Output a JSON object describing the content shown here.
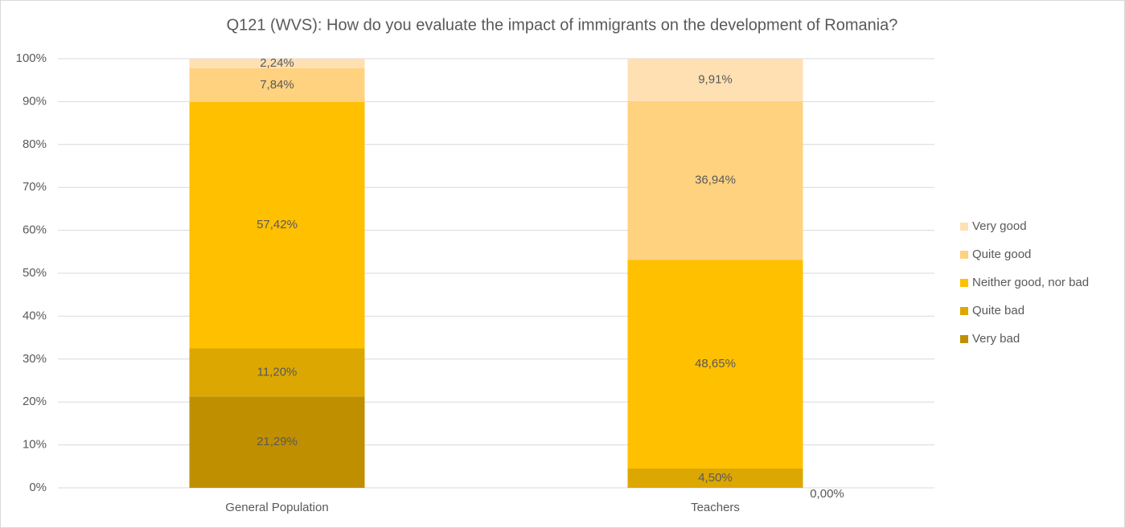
{
  "chart_data": {
    "type": "stacked_bar",
    "title": "Q121 (WVS): How do you evaluate the impact of immigrants on the development of Romania?",
    "categories": [
      "General Population",
      "Teachers"
    ],
    "series": [
      {
        "name": "Very bad",
        "color": "#bf8f00",
        "values": [
          21.29,
          0
        ],
        "value_labels": [
          "21,29%",
          "0,00%"
        ]
      },
      {
        "name": "Quite bad",
        "color": "#dca700",
        "values": [
          11.2,
          4.5
        ],
        "value_labels": [
          "11,20%",
          "4,50%"
        ]
      },
      {
        "name": "Neither good, nor bad",
        "color": "#ffc000",
        "values": [
          57.42,
          48.65
        ],
        "value_labels": [
          "57,42%",
          "48,65%"
        ]
      },
      {
        "name": "Quite good",
        "color": "#ffd280",
        "values": [
          7.84,
          36.94
        ],
        "value_labels": [
          "7,84%",
          "36,94%"
        ]
      },
      {
        "name": "Very good",
        "color": "#ffe0b3",
        "values": [
          2.24,
          9.91
        ],
        "value_labels": [
          "2,24%",
          "9,91%"
        ]
      }
    ],
    "ylim": [
      0,
      100
    ],
    "yticks": [
      {
        "value": 0,
        "label": "0%"
      },
      {
        "value": 10,
        "label": "10%"
      },
      {
        "value": 20,
        "label": "20%"
      },
      {
        "value": 30,
        "label": "30%"
      },
      {
        "value": 40,
        "label": "40%"
      },
      {
        "value": 50,
        "label": "50%"
      },
      {
        "value": 60,
        "label": "60%"
      },
      {
        "value": 70,
        "label": "70%"
      },
      {
        "value": 80,
        "label": "80%"
      },
      {
        "value": 90,
        "label": "90%"
      },
      {
        "value": 100,
        "label": "100%"
      }
    ],
    "grid": true,
    "legend": "right"
  }
}
